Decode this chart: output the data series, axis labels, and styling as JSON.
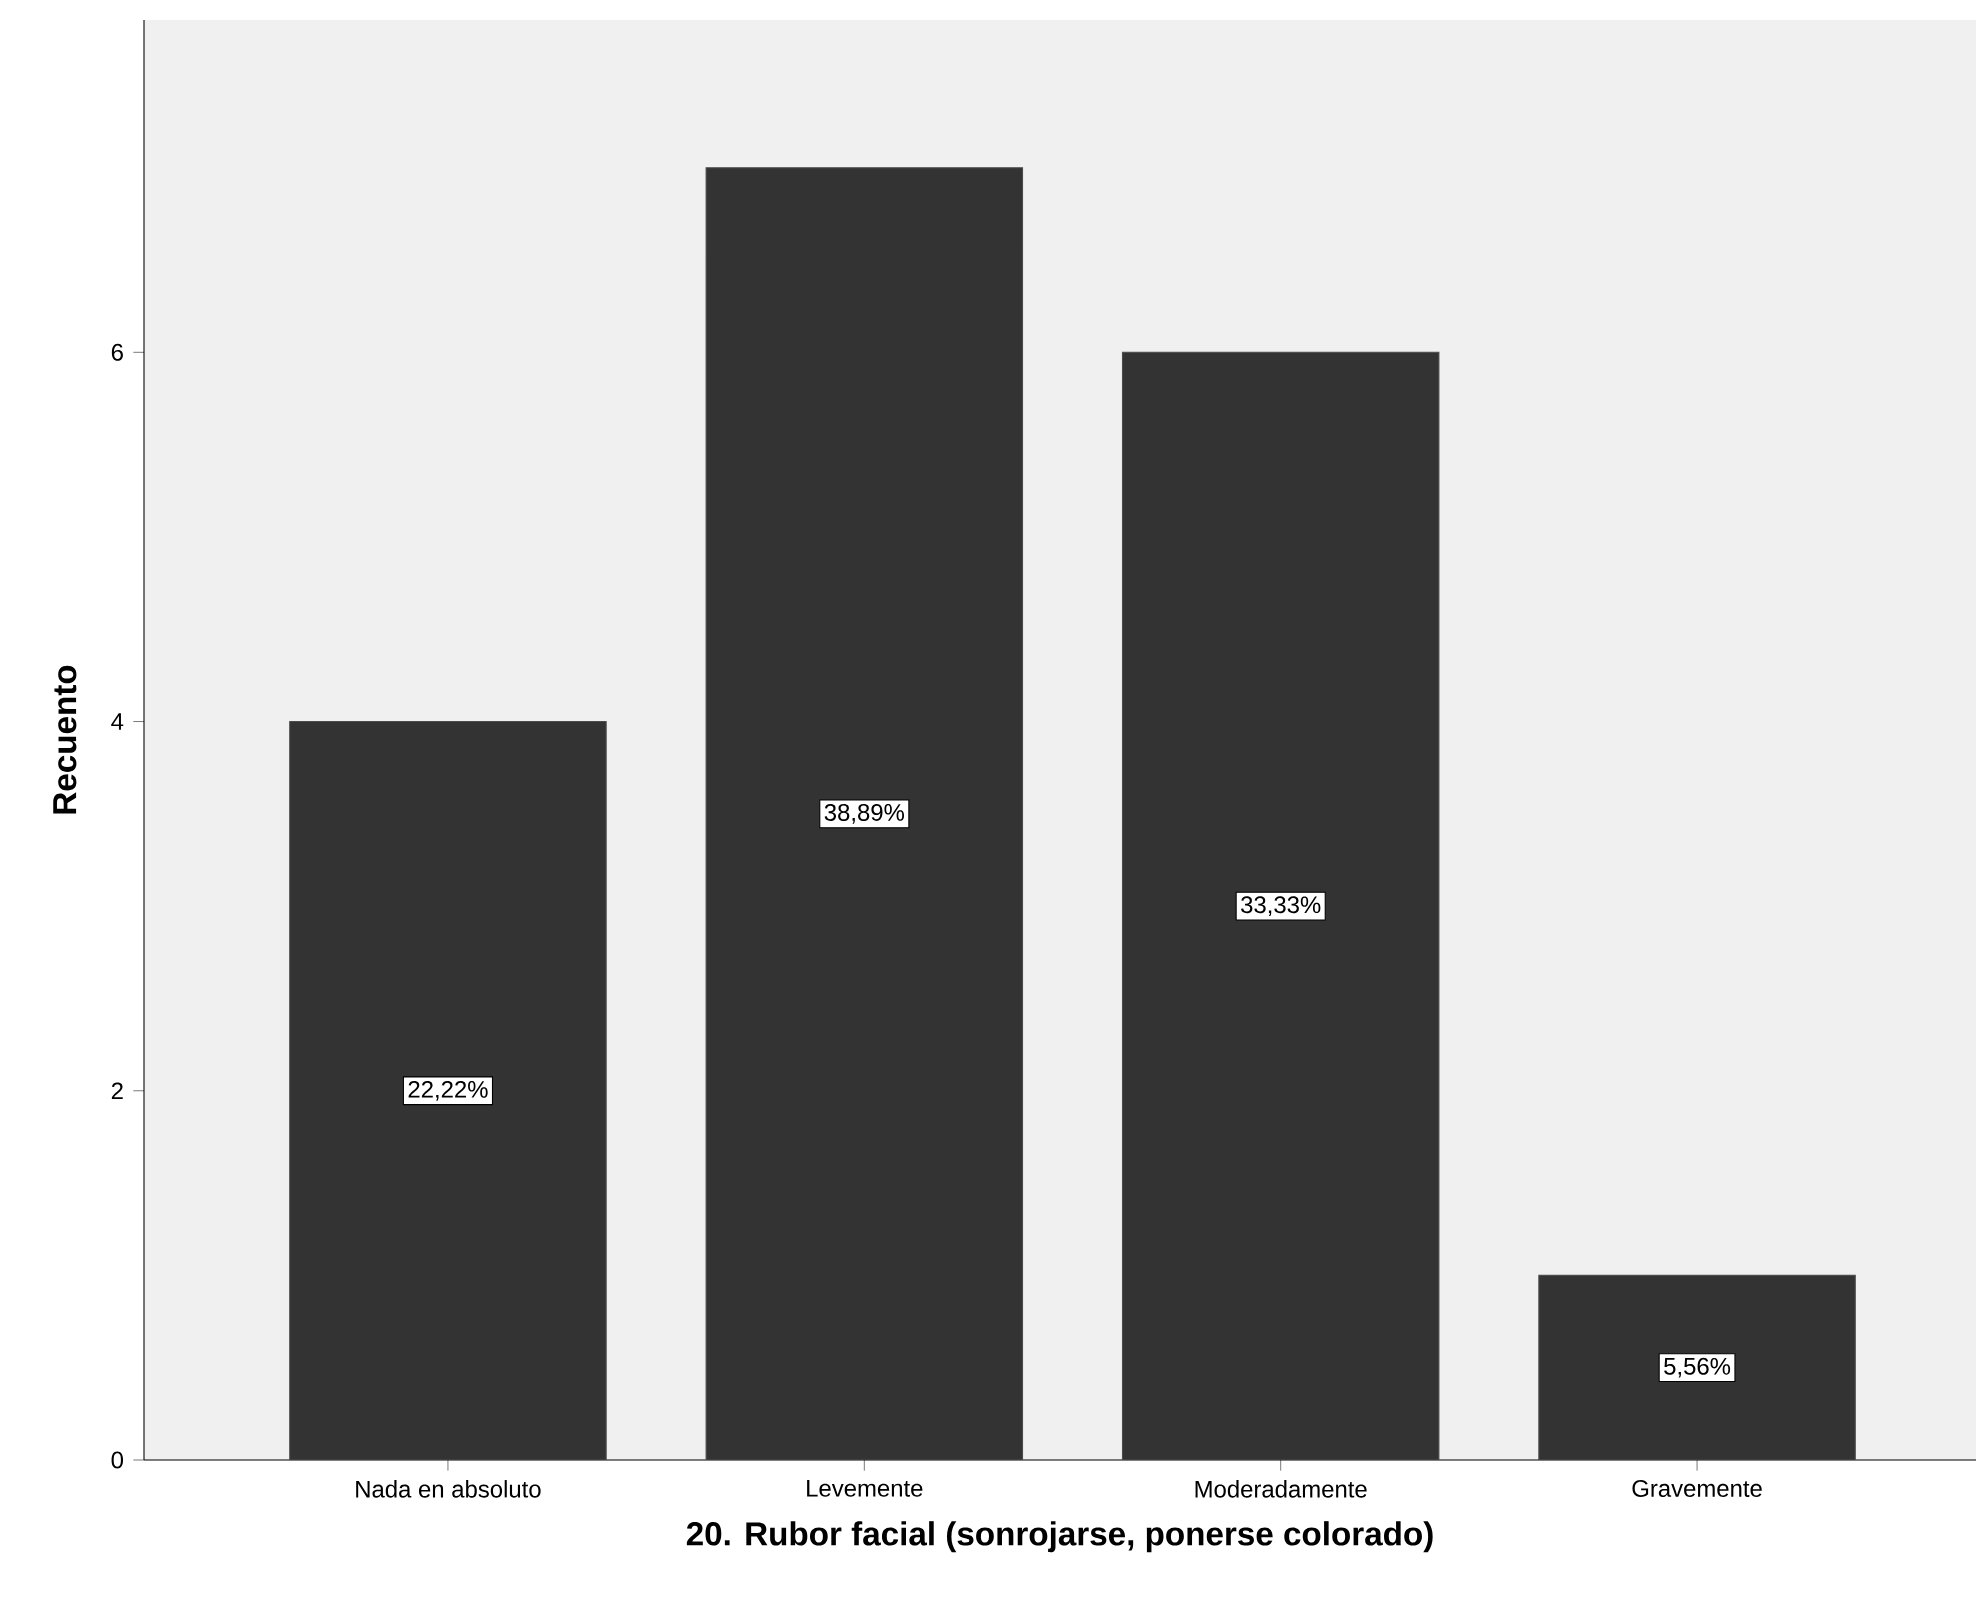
{
  "chart_data": {
    "type": "bar",
    "xlabel": "20. Rubor facial (sonrojarse, ponerse colorado)",
    "ylabel": "Recuento",
    "categories": [
      "Nada en absoluto",
      "Levemente",
      "Moderadamente",
      "Gravemente"
    ],
    "values": [
      4,
      7,
      6,
      1
    ],
    "annotations": [
      "22,22%",
      "38,89%",
      "33,33%",
      "5,56%"
    ],
    "color": "#333333",
    "ylim": [
      0,
      7.8
    ],
    "yticks": [
      0,
      2,
      4,
      6
    ],
    "grid": false
  }
}
